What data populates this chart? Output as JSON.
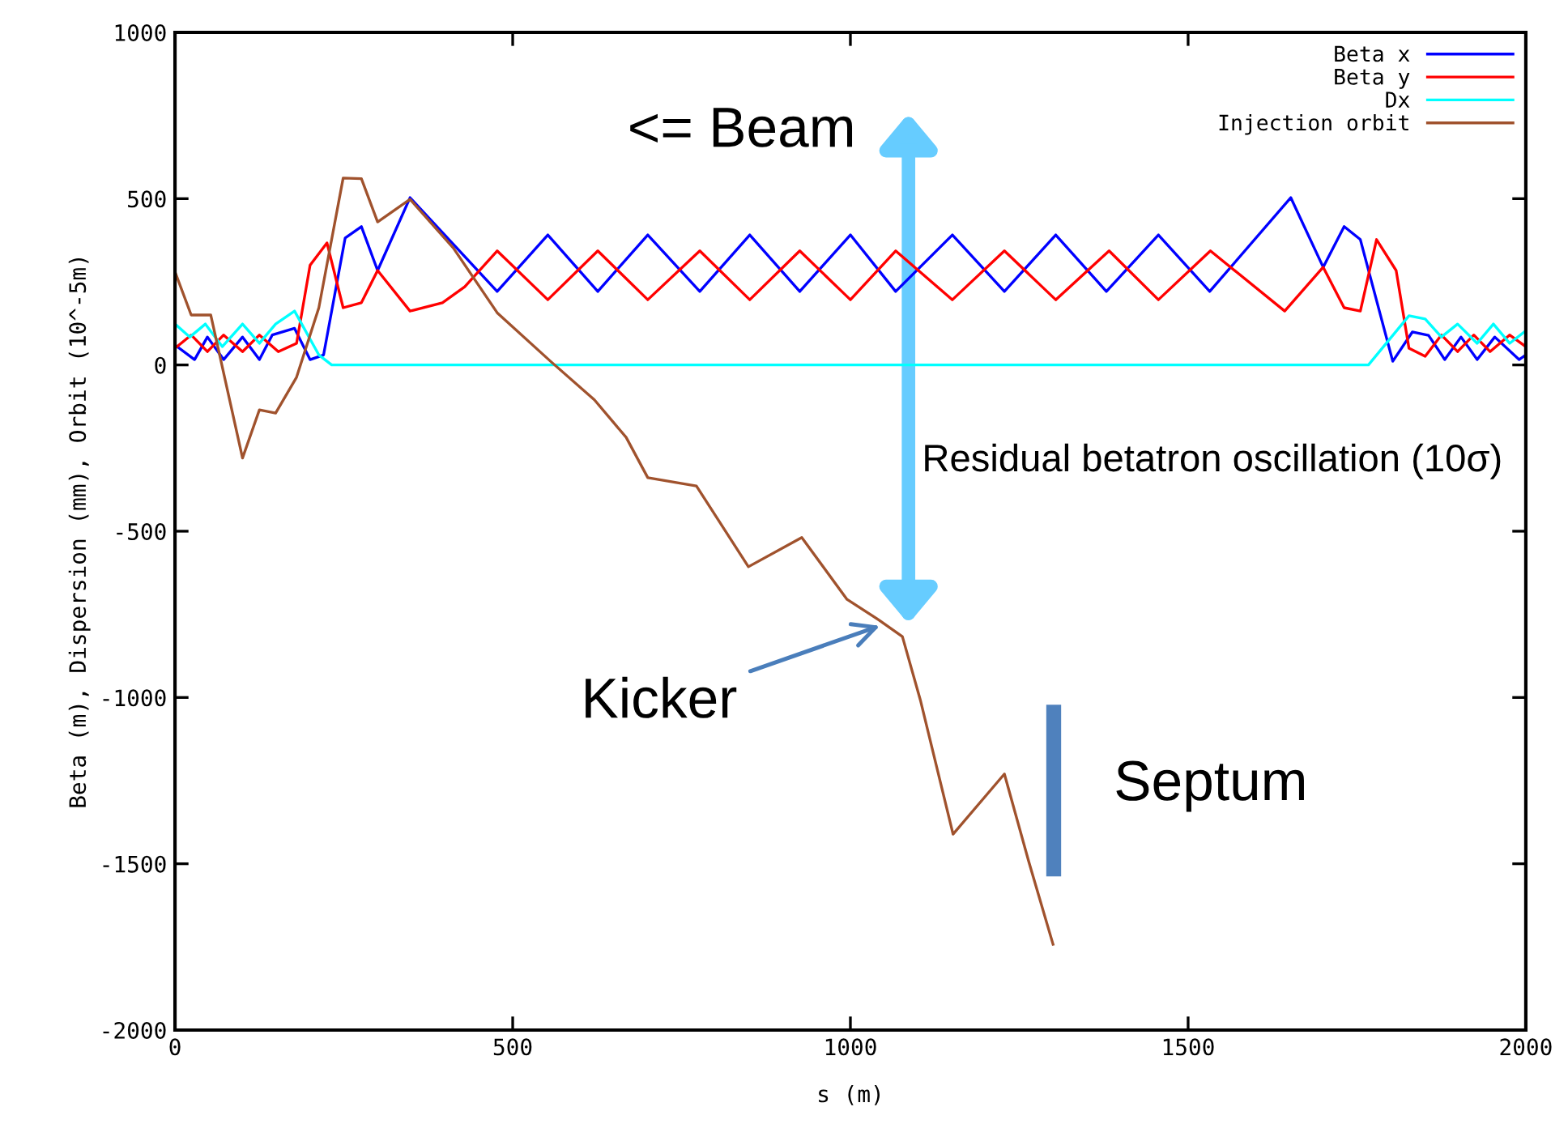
{
  "chart_data": {
    "type": "line",
    "xlabel": "s (m)",
    "ylabel": "Beta (m), Dispersion (mm), Orbit (10^-5m)",
    "xlim": [
      0,
      2000
    ],
    "ylim": [
      -2000,
      1000
    ],
    "xticks": [
      0,
      500,
      1000,
      1500,
      2000
    ],
    "yticks": [
      -2000,
      -1500,
      -1000,
      -500,
      0,
      500,
      1000
    ],
    "grid": false,
    "legend": "top right",
    "marker": "none",
    "line_style": "solid",
    "series": [
      {
        "name": "Beta x",
        "color": "#0000ff",
        "x": [
          0,
          29,
          48,
          72,
          100,
          125,
          144,
          177,
          200,
          220,
          252,
          276,
          300,
          348,
          477,
          552,
          626,
          700,
          777,
          851,
          925,
          1000,
          1067,
          1151,
          1228,
          1304,
          1379,
          1456,
          1532,
          1652,
          1700,
          1731,
          1755,
          1803,
          1832,
          1856,
          1880,
          1904,
          1928,
          1954,
          1990,
          2000
        ],
        "values": [
          60,
          16,
          84,
          16,
          84,
          16,
          90,
          110,
          16,
          30,
          382,
          416,
          284,
          503,
          221,
          391,
          221,
          391,
          221,
          391,
          221,
          391,
          221,
          391,
          221,
          391,
          221,
          391,
          221,
          503,
          294,
          416,
          377,
          11,
          99,
          89,
          16,
          84,
          16,
          84,
          16,
          30
        ]
      },
      {
        "name": "Beta y",
        "color": "#ff0000",
        "x": [
          0,
          24,
          48,
          72,
          100,
          125,
          153,
          180,
          200,
          225,
          249,
          276,
          300,
          348,
          396,
          429,
          477,
          552,
          626,
          700,
          777,
          851,
          925,
          1000,
          1067,
          1151,
          1228,
          1304,
          1383,
          1456,
          1533,
          1643,
          1700,
          1731,
          1755,
          1779,
          1808,
          1827,
          1851,
          1875,
          1899,
          1923,
          1947,
          1976,
          2000
        ],
        "values": [
          50,
          90,
          40,
          90,
          40,
          90,
          40,
          65,
          300,
          367,
          172,
          187,
          284,
          162,
          187,
          235,
          343,
          196,
          343,
          196,
          343,
          196,
          343,
          196,
          343,
          196,
          343,
          196,
          343,
          196,
          343,
          162,
          294,
          172,
          162,
          377,
          284,
          50,
          26,
          90,
          40,
          90,
          40,
          90,
          55
        ]
      },
      {
        "name": "Dx",
        "color": "#00ffff",
        "x": [
          0,
          22,
          45,
          70,
          100,
          125,
          149,
          177,
          213,
          232,
          1767,
          1827,
          1851,
          1875,
          1899,
          1928,
          1952,
          1976,
          2000
        ],
        "values": [
          123,
          84,
          123,
          55,
          123,
          65,
          123,
          162,
          30,
          0,
          0,
          148,
          138,
          84,
          123,
          65,
          123,
          65,
          103
        ]
      },
      {
        "name": "Injection orbit",
        "color": "#a0522d",
        "x": [
          0,
          24,
          53,
          100,
          125,
          149,
          180,
          213,
          249,
          276,
          300,
          348,
          412,
          477,
          556,
          621,
          668,
          700,
          772,
          849,
          928,
          995,
          1043,
          1077,
          1104,
          1152,
          1228,
          1264,
          1300
        ],
        "values": [
          280,
          150,
          150,
          -280,
          -135,
          -145,
          -37,
          172,
          562,
          560,
          430,
          498,
          352,
          157,
          11,
          -105,
          -218,
          -339,
          -364,
          -607,
          -519,
          -705,
          -768,
          -817,
          -1011,
          -1411,
          -1230,
          -1493,
          -1742
        ]
      }
    ],
    "annotations": [
      "<= Beam",
      "Residual betatron oscillation (10σ)",
      {
        "text": "Kicker",
        "x": 1050,
        "y": -780
      },
      "Septum"
    ]
  }
}
